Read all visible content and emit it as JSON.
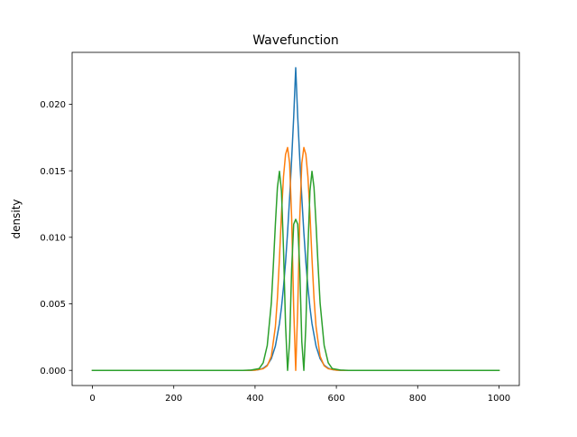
{
  "chart_data": {
    "type": "line",
    "title": "Wavefunction",
    "xlabel": "",
    "ylabel": "density",
    "xlim": [
      -50,
      1050
    ],
    "ylim": [
      -0.00114,
      0.0239
    ],
    "x_ticks": [
      0,
      200,
      400,
      600,
      800,
      1000
    ],
    "x_tick_labels": [
      "0",
      "200",
      "400",
      "600",
      "800",
      "1000"
    ],
    "y_ticks": [
      0.0,
      0.005,
      0.01,
      0.015,
      0.02
    ],
    "y_tick_labels": [
      "0.000",
      "0.005",
      "0.010",
      "0.015",
      "0.020"
    ],
    "grid": false,
    "legend": "none",
    "series": [
      {
        "color": "#1f77b4",
        "x": [
          0,
          380,
          400,
          410,
          420,
          430,
          440,
          450,
          460,
          465,
          470,
          475,
          480,
          485,
          490,
          495,
          500,
          505,
          510,
          515,
          520,
          525,
          530,
          535,
          540,
          550,
          560,
          570,
          580,
          590,
          600,
          620,
          1000
        ],
        "y": [
          0,
          0,
          2e-05,
          6e-05,
          0.00016,
          0.00039,
          0.00088,
          0.00183,
          0.00352,
          0.00474,
          0.00626,
          0.00813,
          0.01037,
          0.01297,
          0.01588,
          0.01901,
          0.02275,
          0.01901,
          0.01588,
          0.01297,
          0.01037,
          0.00813,
          0.00626,
          0.00474,
          0.00352,
          0.00183,
          0.00088,
          0.00039,
          0.00016,
          6e-05,
          2e-05,
          0,
          0
        ]
      },
      {
        "color": "#ff7f0e",
        "x": [
          0,
          380,
          400,
          420,
          430,
          440,
          450,
          455,
          460,
          465,
          470,
          475,
          480,
          485,
          490,
          495,
          500,
          505,
          510,
          515,
          520,
          525,
          530,
          535,
          540,
          545,
          550,
          560,
          570,
          580,
          600,
          620,
          1000
        ],
        "y": [
          0,
          0,
          1e-05,
          0.00012,
          0.00034,
          0.00106,
          0.00328,
          0.00544,
          0.00842,
          0.01181,
          0.01456,
          0.01623,
          0.01675,
          0.01557,
          0.01149,
          0.0047,
          0,
          0.0047,
          0.01149,
          0.01557,
          0.01675,
          0.01623,
          0.01456,
          0.01181,
          0.00842,
          0.00544,
          0.00328,
          0.00106,
          0.00034,
          0.00012,
          1e-05,
          0,
          0
        ]
      },
      {
        "color": "#2ca02c",
        "x": [
          0,
          370,
          390,
          410,
          420,
          430,
          440,
          445,
          450,
          455,
          460,
          465,
          470,
          475,
          480,
          485,
          490,
          495,
          500,
          505,
          510,
          515,
          520,
          525,
          530,
          535,
          540,
          545,
          550,
          555,
          560,
          570,
          580,
          590,
          610,
          630,
          1000
        ],
        "y": [
          0,
          0,
          2e-05,
          0.00013,
          0.00057,
          0.00187,
          0.00506,
          0.0079,
          0.01098,
          0.01375,
          0.01496,
          0.01346,
          0.0091,
          0.00341,
          0,
          0.00216,
          0.00758,
          0.01098,
          0.01135,
          0.01098,
          0.00758,
          0.00216,
          0,
          0.00341,
          0.0091,
          0.01346,
          0.01496,
          0.01375,
          0.01098,
          0.0079,
          0.00506,
          0.00187,
          0.00057,
          0.00013,
          2e-05,
          0,
          0
        ]
      }
    ]
  }
}
